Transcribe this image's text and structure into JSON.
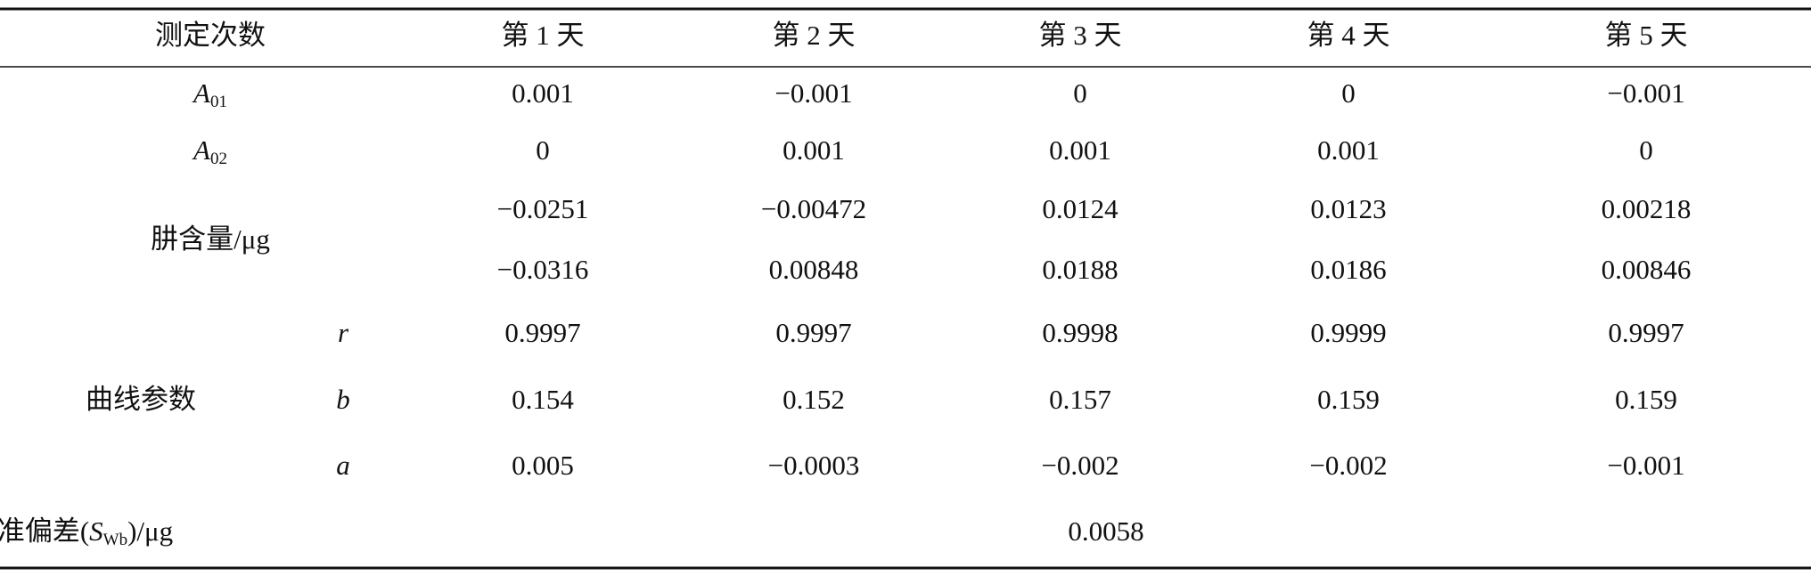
{
  "header": [
    "测定次数",
    "第 1 天",
    "第 2 天",
    "第 3 天",
    "第 4 天",
    "第 5 天"
  ],
  "absorbance": [
    {
      "label": {
        "main": "A",
        "sub": "01"
      },
      "values": [
        "0.001",
        "−0.001",
        "0",
        "0",
        "−0.001"
      ]
    },
    {
      "label": {
        "main": "A",
        "sub": "02"
      },
      "values": [
        "0",
        "0.001",
        "0.001",
        "0.001",
        "0"
      ]
    }
  ],
  "hydrazine": {
    "label": "肼含量/μg",
    "values": [
      [
        "−0.0251",
        "−0.00472",
        "0.0124",
        "0.0123",
        "0.00218"
      ],
      [
        "−0.0316",
        "0.00848",
        "0.0188",
        "0.0186",
        "0.00846"
      ]
    ]
  },
  "curve": {
    "label": "曲线参数",
    "params": [
      {
        "name": "r",
        "values": [
          "0.9997",
          "0.9997",
          "0.9998",
          "0.9999",
          "0.9997"
        ]
      },
      {
        "name": "b",
        "values": [
          "0.154",
          "0.152",
          "0.157",
          "0.159",
          "0.159"
        ]
      },
      {
        "name": "a",
        "values": [
          "0.005",
          "−0.0003",
          "−0.002",
          "−0.002",
          "−0.001"
        ]
      }
    ]
  },
  "std_dev": {
    "label": {
      "pre": "标准偏差(",
      "main": "S",
      "sub": "Wb",
      "post": ")/μg"
    },
    "value": "0.0058"
  }
}
